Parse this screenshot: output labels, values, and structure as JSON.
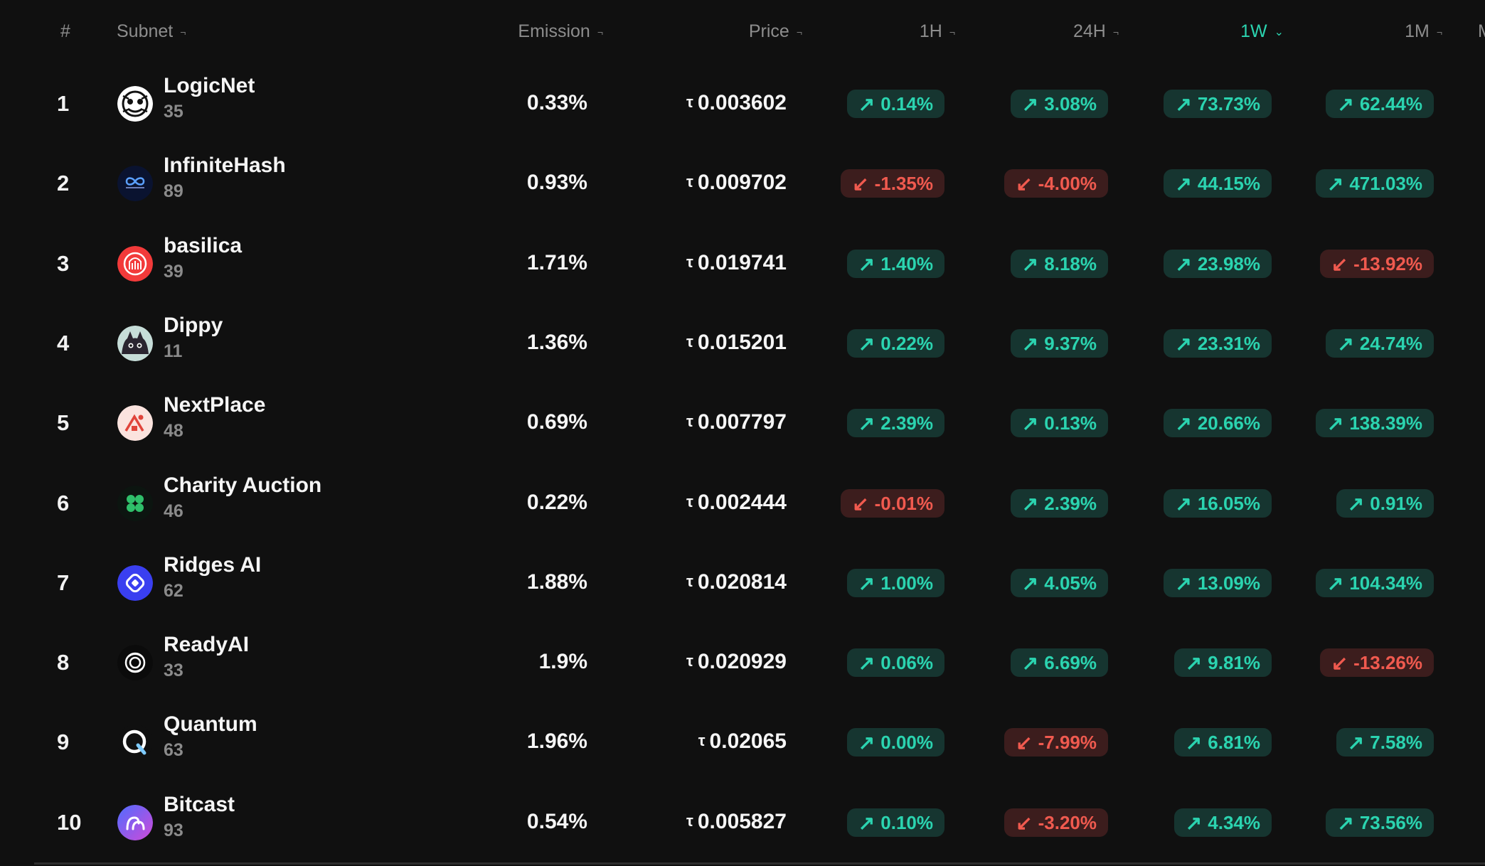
{
  "headers": {
    "rank": "#",
    "subnet": "Subnet",
    "emission": "Emission",
    "price": "Price",
    "h1": "1H",
    "h24": "24H",
    "w1": "1W",
    "m1": "1M",
    "cut": "M"
  },
  "colors": {
    "up": "#2bd4b0",
    "down": "#f05a4f",
    "background": "#101010"
  },
  "currency_symbol": "τ",
  "rows": [
    {
      "rank": "1",
      "name": "LogicNet",
      "netuid": "35",
      "emission": "0.33%",
      "price": "0.003602",
      "logo": "logicnet-logo",
      "h1": {
        "text": "0.14%",
        "dir": "up"
      },
      "h24": {
        "text": "3.08%",
        "dir": "up"
      },
      "w1": {
        "text": "73.73%",
        "dir": "up"
      },
      "m1": {
        "text": "62.44%",
        "dir": "up"
      }
    },
    {
      "rank": "2",
      "name": "InfiniteHash",
      "netuid": "89",
      "emission": "0.93%",
      "price": "0.009702",
      "logo": "infinitehash-logo",
      "h1": {
        "text": "-1.35%",
        "dir": "down"
      },
      "h24": {
        "text": "-4.00%",
        "dir": "down"
      },
      "w1": {
        "text": "44.15%",
        "dir": "up"
      },
      "m1": {
        "text": "471.03%",
        "dir": "up"
      }
    },
    {
      "rank": "3",
      "name": "basilica",
      "netuid": "39",
      "emission": "1.71%",
      "price": "0.019741",
      "logo": "basilica-logo",
      "h1": {
        "text": "1.40%",
        "dir": "up"
      },
      "h24": {
        "text": "8.18%",
        "dir": "up"
      },
      "w1": {
        "text": "23.98%",
        "dir": "up"
      },
      "m1": {
        "text": "-13.92%",
        "dir": "down"
      }
    },
    {
      "rank": "4",
      "name": "Dippy",
      "netuid": "11",
      "emission": "1.36%",
      "price": "0.015201",
      "logo": "dippy-logo",
      "h1": {
        "text": "0.22%",
        "dir": "up"
      },
      "h24": {
        "text": "9.37%",
        "dir": "up"
      },
      "w1": {
        "text": "23.31%",
        "dir": "up"
      },
      "m1": {
        "text": "24.74%",
        "dir": "up"
      }
    },
    {
      "rank": "5",
      "name": "NextPlace",
      "netuid": "48",
      "emission": "0.69%",
      "price": "0.007797",
      "logo": "nextplace-logo",
      "h1": {
        "text": "2.39%",
        "dir": "up"
      },
      "h24": {
        "text": "0.13%",
        "dir": "up"
      },
      "w1": {
        "text": "20.66%",
        "dir": "up"
      },
      "m1": {
        "text": "138.39%",
        "dir": "up"
      }
    },
    {
      "rank": "6",
      "name": "Charity Auction",
      "netuid": "46",
      "emission": "0.22%",
      "price": "0.002444",
      "logo": "charity-auction-logo",
      "h1": {
        "text": "-0.01%",
        "dir": "down"
      },
      "h24": {
        "text": "2.39%",
        "dir": "up"
      },
      "w1": {
        "text": "16.05%",
        "dir": "up"
      },
      "m1": {
        "text": "0.91%",
        "dir": "up"
      }
    },
    {
      "rank": "7",
      "name": "Ridges AI",
      "netuid": "62",
      "emission": "1.88%",
      "price": "0.020814",
      "logo": "ridges-ai-logo",
      "h1": {
        "text": "1.00%",
        "dir": "up"
      },
      "h24": {
        "text": "4.05%",
        "dir": "up"
      },
      "w1": {
        "text": "13.09%",
        "dir": "up"
      },
      "m1": {
        "text": "104.34%",
        "dir": "up"
      }
    },
    {
      "rank": "8",
      "name": "ReadyAI",
      "netuid": "33",
      "emission": "1.9%",
      "price": "0.020929",
      "logo": "readyai-logo",
      "h1": {
        "text": "0.06%",
        "dir": "up"
      },
      "h24": {
        "text": "6.69%",
        "dir": "up"
      },
      "w1": {
        "text": "9.81%",
        "dir": "up"
      },
      "m1": {
        "text": "-13.26%",
        "dir": "down"
      }
    },
    {
      "rank": "9",
      "name": "Quantum",
      "netuid": "63",
      "emission": "1.96%",
      "price": "0.02065",
      "logo": "quantum-logo",
      "h1": {
        "text": "0.00%",
        "dir": "up"
      },
      "h24": {
        "text": "-7.99%",
        "dir": "down"
      },
      "w1": {
        "text": "6.81%",
        "dir": "up"
      },
      "m1": {
        "text": "7.58%",
        "dir": "up"
      }
    },
    {
      "rank": "10",
      "name": "Bitcast",
      "netuid": "93",
      "emission": "0.54%",
      "price": "0.005827",
      "logo": "bitcast-logo",
      "h1": {
        "text": "0.10%",
        "dir": "up"
      },
      "h24": {
        "text": "-3.20%",
        "dir": "down"
      },
      "w1": {
        "text": "4.34%",
        "dir": "up"
      },
      "m1": {
        "text": "73.56%",
        "dir": "up"
      }
    }
  ]
}
